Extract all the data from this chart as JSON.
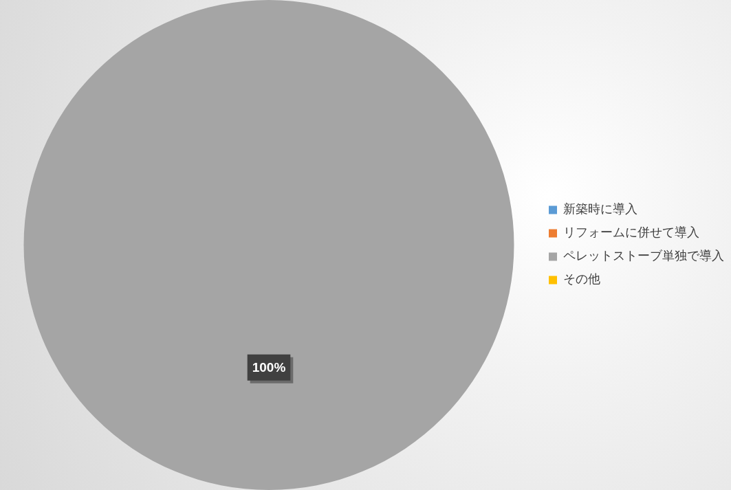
{
  "chart_data": {
    "type": "pie",
    "categories": [
      "新築時に導入",
      "リフォームに併せて導入",
      "ペレットストーブ単独で導入",
      "その他"
    ],
    "values": [
      0,
      0,
      100,
      0
    ],
    "colors": [
      "#5b9bd5",
      "#ed7d31",
      "#a5a5a5",
      "#ffc000"
    ],
    "value_labels": [
      null,
      null,
      "100%",
      null
    ],
    "legend": "right"
  }
}
